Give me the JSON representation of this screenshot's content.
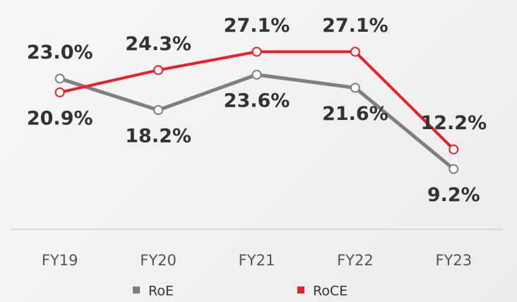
{
  "chart_data": {
    "type": "line",
    "categories": [
      "FY19",
      "FY20",
      "FY21",
      "FY22",
      "FY23"
    ],
    "series": [
      {
        "name": "RoE",
        "color": "#7f7f7f",
        "values": [
          23.0,
          18.2,
          23.6,
          21.6,
          9.2
        ],
        "value_labels": [
          "23.0%",
          "18.2%",
          "23.6%",
          "21.6%",
          "9.2%"
        ]
      },
      {
        "name": "RoCE",
        "color": "#e8202a",
        "values": [
          20.9,
          24.3,
          27.1,
          27.1,
          12.2
        ],
        "value_labels": [
          "20.9%",
          "24.3%",
          "27.1%",
          "27.1%",
          "12.2%"
        ]
      }
    ],
    "ylim": [
      0,
      35
    ],
    "grid": false
  }
}
